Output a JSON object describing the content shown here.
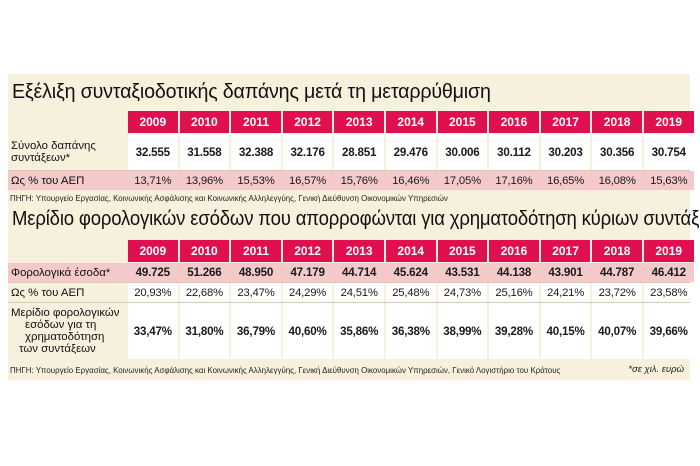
{
  "table1": {
    "title": "Εξέλιξη συνταξιοδοτικής δαπάνης μετά τη μεταρρύθμιση",
    "years": [
      "2009",
      "2010",
      "2011",
      "2012",
      "2013",
      "2014",
      "2015",
      "2016",
      "2017",
      "2018",
      "2019"
    ],
    "rows": [
      {
        "label_lines": [
          "Σύνολο δαπάνης",
          "συντάξεων*"
        ],
        "values": [
          "32.555",
          "31.558",
          "32.388",
          "32.176",
          "28.851",
          "29.476",
          "30.006",
          "30.112",
          "30.203",
          "30.356",
          "30.754"
        ]
      },
      {
        "label_lines": [
          "Ως % του ΑΕΠ"
        ],
        "values": [
          "13,71%",
          "13,96%",
          "15,53%",
          "16,57%",
          "15,76%",
          "16,46%",
          "17,05%",
          "17,16%",
          "16,65%",
          "16,08%",
          "15,63%"
        ]
      }
    ],
    "source": "ΠΗΓΗ: Υπουργείο Εργασίας, Κοινωνικής Ασφάλισης και Κοινωνικής Αλληλεγγύης, Γενική Διεύθυνση Οικονομικών Υπηρεσιών"
  },
  "table2": {
    "title": "Μερίδιο φορολογικών εσόδων που απορροφώνται για χρηματοδότηση κύριων συντάξεων",
    "years": [
      "2009",
      "2010",
      "2011",
      "2012",
      "2013",
      "2014",
      "2015",
      "2016",
      "2017",
      "2018",
      "2019"
    ],
    "rows": [
      {
        "label_lines": [
          "Φορολογικά έσοδα*"
        ],
        "values": [
          "49.725",
          "51.266",
          "48.950",
          "47.179",
          "44.714",
          "45.624",
          "43.531",
          "44.138",
          "43.901",
          "44.787",
          "46.412"
        ]
      },
      {
        "label_lines": [
          "Ως % του ΑΕΠ"
        ],
        "values": [
          "20,93%",
          "22,68%",
          "23,47%",
          "24,29%",
          "24,51%",
          "25,48%",
          "24,73%",
          "25,16%",
          "24,21%",
          "23,72%",
          "23,58%"
        ]
      },
      {
        "label_lines": [
          "Μερίδιο φορολογικών",
          "εσόδων για τη",
          "χρηματοδότηση",
          "των συντάξεων"
        ],
        "values": [
          "33,47%",
          "31,80%",
          "36,79%",
          "40,60%",
          "35,86%",
          "36,38%",
          "38,99%",
          "39,28%",
          "40,15%",
          "40,07%",
          "39,66%"
        ]
      }
    ],
    "source": "ΠΗΓΗ: Υπουργείο Εργασίας, Κοινωνικής Ασφάλισης και Κοινωνικής Αλληλεγγύης, Γενική Διεύθυνση Οικονομικών Υπηρεσιών, Γενικό Λογιστήριο του Κράτους",
    "note": "*σε χιλ. ευρώ"
  }
}
